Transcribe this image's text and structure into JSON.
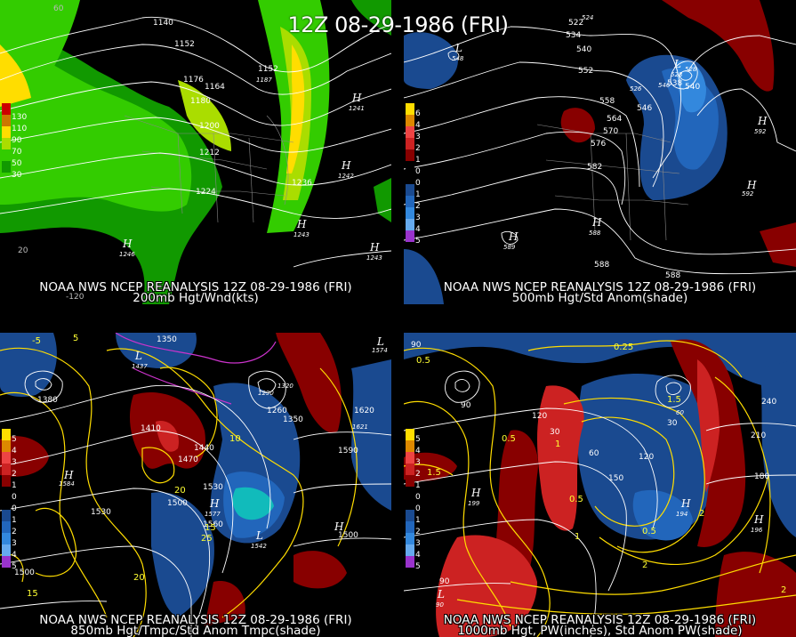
{
  "title": "12Z 08-29-1986 (FRI)",
  "panels": [
    {
      "caption_line1": "NOAA NWS NCEP REANALYSIS 12Z 08-29-1986 (FRI)",
      "caption_line2": "200mb Hgt/Wnd(kts)",
      "legend": [
        "130",
        "110",
        "90",
        "70",
        "50",
        "30"
      ],
      "legend_colors": [
        "#cc0000",
        "#cc7700",
        "#ffdd00",
        "#aadd00",
        "#33cc00",
        "#119900"
      ],
      "contour_labels": [
        "1140",
        "1152",
        "1176",
        "1164",
        "1180",
        "1200",
        "1212",
        "1224",
        "1236",
        "1152",
        "1187"
      ],
      "highs": [
        {
          "letter": "H",
          "value": "1241"
        },
        {
          "letter": "H",
          "value": "1242"
        },
        {
          "letter": "H",
          "value": "1243"
        },
        {
          "letter": "H",
          "value": "1243"
        },
        {
          "letter": "H",
          "value": "1246"
        }
      ],
      "lon_labels": [
        "60",
        "20",
        "-120"
      ]
    },
    {
      "caption_line1": "NOAA NWS NCEP REANALYSIS 12Z 08-29-1986 (FRI)",
      "caption_line2": "500mb Hgt/Std Anom(shade)",
      "legend": [
        "6",
        "4",
        "3",
        "2",
        "1",
        "0",
        "0",
        "1",
        "2",
        "3",
        "4",
        "5"
      ],
      "legend_colors": [
        "#ffdd00",
        "#dd8800",
        "#ee4444",
        "#cc2222",
        "#880000",
        "#000000",
        "#000000",
        "#1a4a90",
        "#2266bb",
        "#3388dd",
        "#66aaee",
        "#9933cc"
      ],
      "contour_labels": [
        "522",
        "534",
        "540",
        "552",
        "558",
        "564",
        "570",
        "576",
        "582",
        "588",
        "588",
        "546",
        "528",
        "540",
        "546",
        "526",
        "538",
        "524"
      ],
      "highs": [
        {
          "letter": "H",
          "value": "592"
        },
        {
          "letter": "H",
          "value": "592"
        },
        {
          "letter": "H",
          "value": "589"
        },
        {
          "letter": "H",
          "value": "588"
        }
      ],
      "lows": [
        {
          "letter": "L",
          "value": "548"
        },
        {
          "letter": "L",
          "value": "528"
        }
      ]
    },
    {
      "caption_line1": "NOAA NWS NCEP REANALYSIS 12Z 08-29-1986 (FRI)",
      "caption_line2": "850mb Hgt/Tmpc/Std Anom Tmpc(shade)",
      "legend": [
        "5",
        "4",
        "3",
        "2",
        "1",
        "0",
        "0",
        "1",
        "2",
        "3",
        "4",
        "5"
      ],
      "legend_colors": [
        "#ffdd00",
        "#dd8800",
        "#ee4444",
        "#cc2222",
        "#880000",
        "#000000",
        "#000000",
        "#1a4a90",
        "#2266bb",
        "#3388dd",
        "#66aaee",
        "#9933cc"
      ],
      "contour_labels": [
        "1350",
        "1380",
        "1410",
        "1440",
        "1470",
        "1500",
        "1530",
        "1530",
        "1560",
        "1590",
        "1620",
        "1500",
        "1500",
        "1350",
        "1260",
        "1290",
        "1320"
      ],
      "temp_labels": [
        "5",
        "10",
        "15",
        "20",
        "20",
        "15",
        "25",
        "-5"
      ],
      "highs": [
        {
          "letter": "H",
          "value": "1584"
        },
        {
          "letter": "H",
          "value": "1577"
        },
        {
          "letter": "H",
          "value": "1621"
        }
      ],
      "lows": [
        {
          "letter": "L",
          "value": "1574"
        },
        {
          "letter": "L",
          "value": "1542"
        },
        {
          "letter": "L",
          "value": "1437"
        }
      ]
    },
    {
      "caption_line1": "NOAA NWS NCEP REANALYSIS 12Z 08-29-1986 (FRI)",
      "caption_line2": "1000mb Hgt, PW(inches), Std Anom PW(shade)",
      "legend": [
        "5",
        "4",
        "3",
        "2",
        "1",
        "0",
        "0",
        "1",
        "2",
        "3",
        "4",
        "5"
      ],
      "legend_colors": [
        "#ffdd00",
        "#dd8800",
        "#ee4444",
        "#cc2222",
        "#880000",
        "#000000",
        "#000000",
        "#1a4a90",
        "#2266bb",
        "#3388dd",
        "#66aaee",
        "#9933cc"
      ],
      "contour_labels": [
        "90",
        "120",
        "60",
        "30",
        "150",
        "180",
        "210",
        "240",
        "90",
        "90",
        "120",
        "30",
        "60"
      ],
      "pw_labels": [
        "0.5",
        "0.25",
        "1",
        "1.5",
        "0.5",
        "0.5",
        "1",
        "2",
        "2",
        "0.5",
        "1.5",
        "2"
      ],
      "highs": [
        {
          "letter": "H",
          "value": "199"
        },
        {
          "letter": "H",
          "value": "194"
        },
        {
          "letter": "H",
          "value": "196"
        }
      ],
      "lows": [
        {
          "letter": "L",
          "value": "90"
        }
      ]
    }
  ]
}
